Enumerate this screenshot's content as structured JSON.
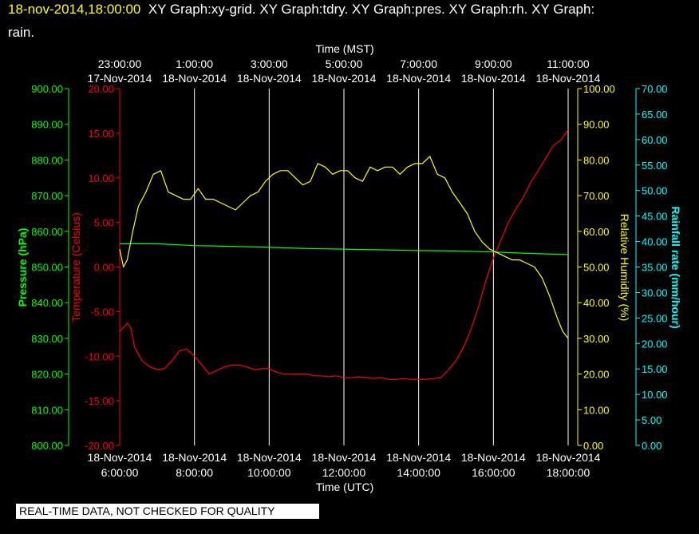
{
  "header": {
    "timestamp": "18-nov-2014,18:00:00",
    "description_line1": "XY Graph:xy-grid.  XY Graph:tdry.  XY Graph:pres.  XY Graph:rh.  XY Graph:",
    "description_line2": "rain."
  },
  "disclaimer": "REAL-TIME DATA, NOT CHECKED FOR QUALITY",
  "colors": {
    "temperature": "#ff0000",
    "pressure": "#00ff00",
    "humidity": "#ffff00",
    "rainfall": "#00ffff",
    "grid": "#ffffff",
    "text": "#ffffff"
  },
  "chart_data": {
    "type": "line",
    "grid": "vertical",
    "x_bottom": {
      "label": "Time (UTC)",
      "ticks": [
        {
          "date": "18-Nov-2014",
          "time": "6:00:00"
        },
        {
          "date": "18-Nov-2014",
          "time": "8:00:00"
        },
        {
          "date": "18-Nov-2014",
          "time": "10:00:00"
        },
        {
          "date": "18-Nov-2014",
          "time": "12:00:00"
        },
        {
          "date": "18-Nov-2014",
          "time": "14:00:00"
        },
        {
          "date": "18-Nov-2014",
          "time": "16:00:00"
        },
        {
          "date": "18-Nov-2014",
          "time": "18:00:00"
        }
      ]
    },
    "x_top": {
      "label": "Time (MST)",
      "ticks": [
        {
          "time": "23:00:00",
          "date": "17-Nov-2014"
        },
        {
          "time": "1:00:00",
          "date": "18-Nov-2014"
        },
        {
          "time": "3:00:00",
          "date": "18-Nov-2014"
        },
        {
          "time": "5:00:00",
          "date": "18-Nov-2014"
        },
        {
          "time": "7:00:00",
          "date": "18-Nov-2014"
        },
        {
          "time": "9:00:00",
          "date": "18-Nov-2014"
        },
        {
          "time": "11:00:00",
          "date": "18-Nov-2014"
        }
      ]
    },
    "x_range_hours_utc": [
      6,
      18
    ],
    "axes": {
      "pressure": {
        "label": "Pressure (hPa)",
        "range": [
          800,
          900
        ],
        "ticks": [
          "800.00",
          "810.00",
          "820.00",
          "830.00",
          "840.00",
          "850.00",
          "860.00",
          "870.00",
          "880.00",
          "890.00",
          "900.00"
        ]
      },
      "temperature": {
        "label": "Temperature (Celsius)",
        "range": [
          -20,
          20
        ],
        "ticks": [
          "-20.00",
          "-15.00",
          "-10.00",
          "-5.00",
          "0.00",
          "5.00",
          "10.00",
          "15.00",
          "20.00"
        ]
      },
      "humidity": {
        "label": "Relative Humidity (%)",
        "range": [
          0,
          100
        ],
        "ticks": [
          "0.00",
          "10.00",
          "20.00",
          "30.00",
          "40.00",
          "50.00",
          "60.00",
          "70.00",
          "80.00",
          "90.00",
          "100.00"
        ]
      },
      "rainfall": {
        "label": "Rainfall rate (mm/hour)",
        "range": [
          0,
          70
        ],
        "ticks": [
          "0.00",
          "5.00",
          "10.00",
          "15.00",
          "20.00",
          "25.00",
          "30.00",
          "35.00",
          "40.00",
          "45.00",
          "50.00",
          "55.00",
          "60.00",
          "65.00",
          "70.00"
        ]
      }
    },
    "series": [
      {
        "key": "temperature",
        "x": [
          6.0,
          6.1,
          6.2,
          6.3,
          6.4,
          6.6,
          6.8,
          7.0,
          7.2,
          7.4,
          7.6,
          7.8,
          8.0,
          8.2,
          8.4,
          8.6,
          8.8,
          9.0,
          9.2,
          9.4,
          9.6,
          9.8,
          10.0,
          10.2,
          10.4,
          10.6,
          10.8,
          11.0,
          11.2,
          11.4,
          11.6,
          11.8,
          12.0,
          12.2,
          12.4,
          12.6,
          12.8,
          13.0,
          13.2,
          13.4,
          13.6,
          13.8,
          14.0,
          14.2,
          14.4,
          14.6,
          14.8,
          15.0,
          15.2,
          15.4,
          15.6,
          15.8,
          16.0,
          16.2,
          16.4,
          16.6,
          16.8,
          17.0,
          17.2,
          17.4,
          17.6,
          17.8,
          18.0
        ],
        "y": [
          -7.2,
          -6.8,
          -6.3,
          -6.8,
          -9.0,
          -10.5,
          -11.2,
          -11.5,
          -11.4,
          -10.5,
          -9.4,
          -9.2,
          -10.0,
          -11.0,
          -12.0,
          -11.6,
          -11.2,
          -11.0,
          -11.0,
          -11.2,
          -11.5,
          -11.4,
          -11.4,
          -11.8,
          -12.0,
          -12.0,
          -12.0,
          -12.0,
          -12.2,
          -12.2,
          -12.3,
          -12.2,
          -12.4,
          -12.4,
          -12.3,
          -12.4,
          -12.5,
          -12.4,
          -12.6,
          -12.6,
          -12.5,
          -12.6,
          -12.6,
          -12.6,
          -12.5,
          -12.4,
          -11.5,
          -10.5,
          -9.0,
          -7.0,
          -4.5,
          -1.5,
          1.0,
          3.0,
          5.0,
          6.5,
          7.8,
          9.5,
          10.8,
          12.2,
          13.6,
          14.2,
          15.4
        ]
      },
      {
        "key": "pressure",
        "x": [
          6.0,
          7.0,
          8.0,
          9.0,
          10.0,
          11.0,
          12.0,
          13.0,
          14.0,
          15.0,
          16.0,
          17.0,
          18.0
        ],
        "y": [
          856.5,
          856.5,
          856.0,
          855.8,
          855.5,
          855.2,
          855.0,
          854.8,
          854.6,
          854.5,
          854.2,
          853.8,
          853.5
        ]
      },
      {
        "key": "humidity",
        "x": [
          6.0,
          6.1,
          6.2,
          6.35,
          6.5,
          6.7,
          6.9,
          7.1,
          7.3,
          7.5,
          7.7,
          7.9,
          8.1,
          8.3,
          8.5,
          8.7,
          8.9,
          9.1,
          9.3,
          9.5,
          9.7,
          9.9,
          10.1,
          10.3,
          10.5,
          10.7,
          10.9,
          11.1,
          11.3,
          11.5,
          11.7,
          11.9,
          12.1,
          12.3,
          12.5,
          12.7,
          12.9,
          13.1,
          13.3,
          13.5,
          13.7,
          13.9,
          14.1,
          14.3,
          14.5,
          14.7,
          14.9,
          15.1,
          15.3,
          15.5,
          15.7,
          15.9,
          16.1,
          16.3,
          16.5,
          16.7,
          16.9,
          17.1,
          17.3,
          17.5,
          17.7,
          17.85,
          18.0
        ],
        "y": [
          55,
          50,
          52,
          60,
          67,
          71,
          76,
          77,
          71,
          70,
          69,
          69,
          72,
          69,
          69,
          68,
          67,
          66,
          68,
          70,
          71,
          74,
          76,
          77,
          77,
          75,
          73,
          74,
          79,
          78,
          76,
          77,
          77,
          75,
          74,
          78,
          77,
          78,
          78,
          76,
          78,
          79,
          79,
          81,
          76,
          75,
          71,
          68,
          65,
          60,
          57,
          55,
          54,
          53,
          52,
          52,
          51,
          50,
          47,
          42,
          36,
          32,
          30
        ]
      },
      {
        "key": "rainfall",
        "x": [],
        "y": []
      }
    ]
  }
}
